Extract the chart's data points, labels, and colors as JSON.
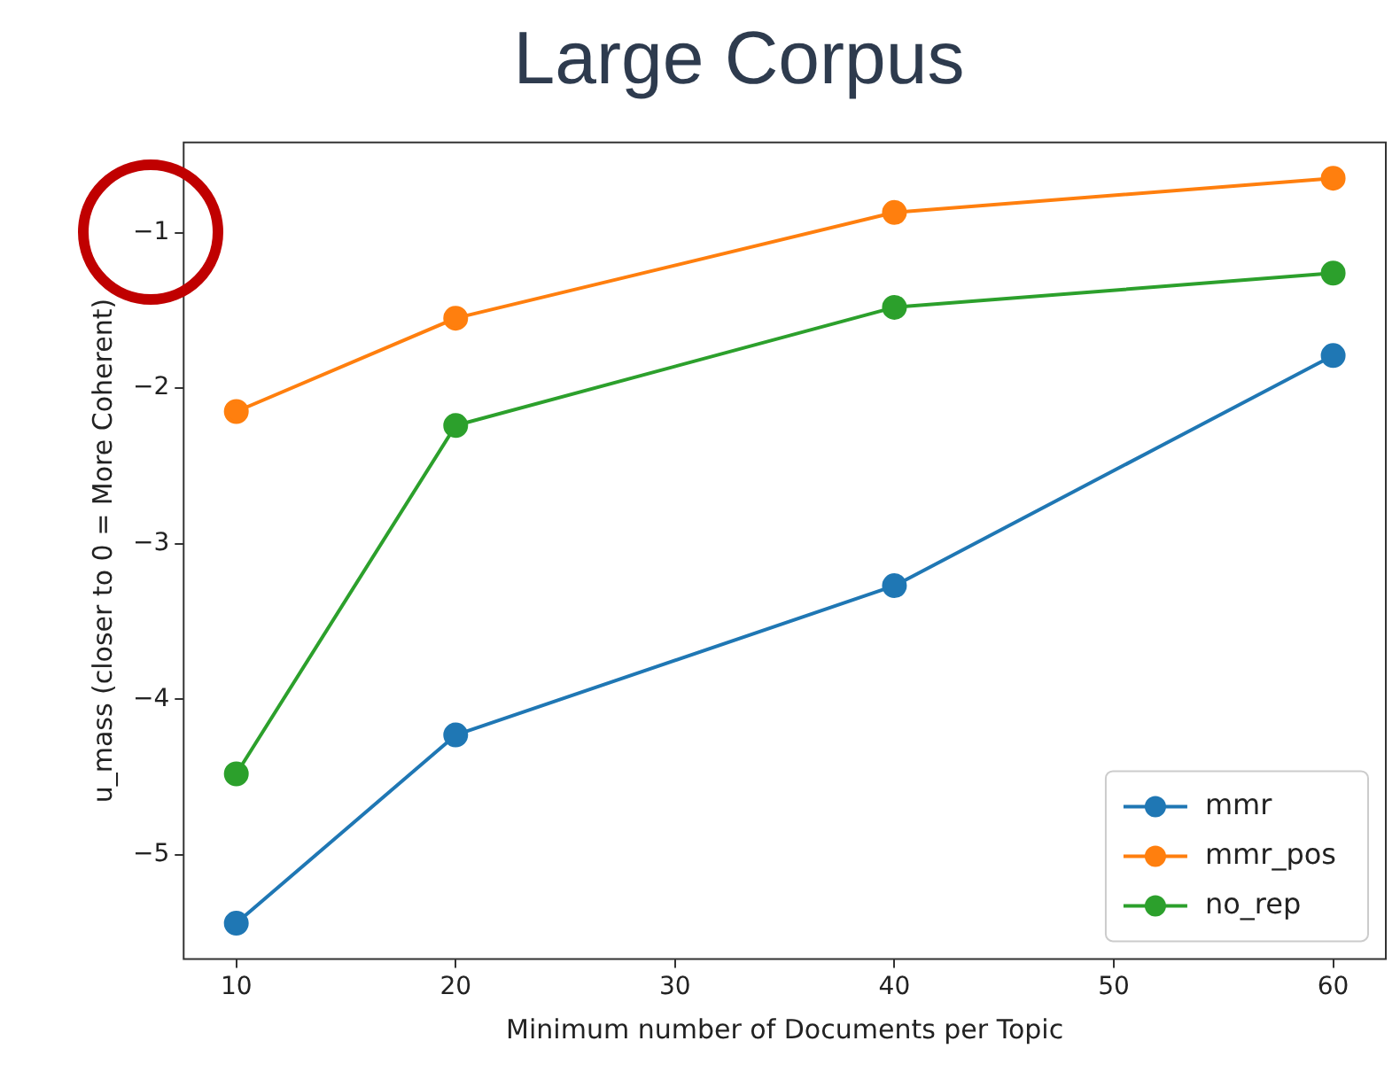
{
  "chart_data": {
    "type": "line",
    "title": "Large Corpus",
    "xlabel": "Minimum number of Documents per Topic",
    "ylabel": "u_mass (closer to 0 = More Coherent)",
    "x": [
      10,
      20,
      40,
      60
    ],
    "series": [
      {
        "name": "mmr",
        "color": "#1f77b4",
        "values": [
          -5.44,
          -4.23,
          -3.27,
          -1.79
        ]
      },
      {
        "name": "mmr_pos",
        "color": "#ff7f0e",
        "values": [
          -2.15,
          -1.55,
          -0.87,
          -0.65
        ]
      },
      {
        "name": "no_rep",
        "color": "#2ca02c",
        "values": [
          -4.48,
          -2.24,
          -1.48,
          -1.26
        ]
      }
    ],
    "xlim": [
      7.6,
      62.4
    ],
    "xticks": [
      10,
      20,
      30,
      40,
      50,
      60
    ],
    "ylim": [
      -5.67,
      -0.42
    ],
    "yticks": [
      -5,
      -4,
      -3,
      -2,
      -1
    ],
    "grid": false,
    "legend": "bottom right",
    "marker": "circle",
    "line_style": "solid"
  }
}
